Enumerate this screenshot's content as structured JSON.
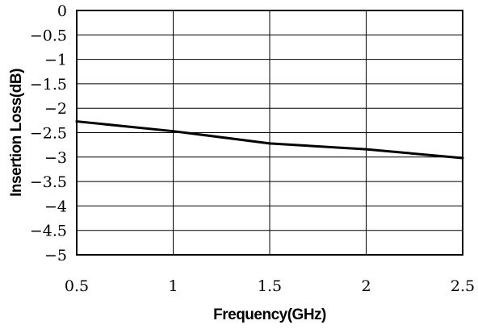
{
  "chart_data": {
    "type": "line",
    "title": "",
    "xlabel": "Frequency(GHz)",
    "ylabel": "Insertion Loss(dB)",
    "xlim": [
      0.5,
      2.5
    ],
    "ylim": [
      -5,
      0
    ],
    "x_ticks": [
      0.5,
      1,
      1.5,
      2,
      2.5
    ],
    "x_tick_labels": [
      "0.5",
      "1",
      "1.5",
      "2",
      "2.5"
    ],
    "y_ticks": [
      0,
      -0.5,
      -1,
      -1.5,
      -2,
      -2.5,
      -3,
      -3.5,
      -4,
      -4.5,
      -5
    ],
    "y_tick_labels": [
      "0",
      "−0.5",
      "−1",
      "−1.5",
      "−2",
      "−2.5",
      "−3",
      "−3.5",
      "−4",
      "−4.5",
      "−5"
    ],
    "grid": true,
    "legend": "none",
    "series": [
      {
        "x": [
          0.5,
          1,
          1.5,
          2,
          2.5
        ],
        "y": [
          -2.27,
          -2.47,
          -2.72,
          -2.84,
          -3.02
        ]
      }
    ],
    "colors": {
      "line": "#000000",
      "grid": "#000000",
      "background": "#ffffff"
    }
  }
}
